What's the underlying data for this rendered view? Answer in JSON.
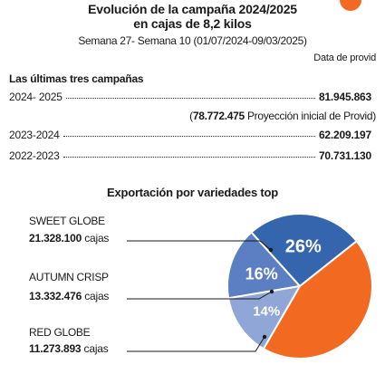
{
  "header": {
    "title_line1": "Evolución de la campaña 2024/2025",
    "title_line2": "en cajas de 8,2 kilos",
    "subtitle": "Semana 27- Semana 10 (01/07/2024-09/03/2025)",
    "source": "Data de provid"
  },
  "campaigns": {
    "section_title": "Las últimas tres campañas",
    "rows": [
      {
        "label": "2024- 2025",
        "value": "81.945.863"
      },
      {
        "label": "2023-2024",
        "value": "62.209.197"
      },
      {
        "label": "2022-2023",
        "value": "70.731.130"
      }
    ],
    "note_value": "78.772.475",
    "note_text": "Proyección inicial de Provid"
  },
  "export": {
    "title": "Exportación por variedades top",
    "unit": "cajas"
  },
  "colors": {
    "sweet_globe": "#3565ad",
    "autumn_crisp": "#5b7fc2",
    "red_globe": "#8fa6d6",
    "other": "#f26a21"
  },
  "chart_data": {
    "type": "pie",
    "title": "Exportación por variedades top",
    "slices": [
      {
        "name": "SWEET GLOBE",
        "value": 21328100,
        "value_label": "21.328.100",
        "percent": 26,
        "percent_label": "26%"
      },
      {
        "name": "AUTUMN CRISP",
        "value": 13332476,
        "value_label": "13.332.476",
        "percent": 16,
        "percent_label": "16%"
      },
      {
        "name": "RED GLOBE",
        "value": 11273893,
        "value_label": "11.273.893",
        "percent": 14,
        "percent_label": "14%"
      },
      {
        "name": "",
        "percent": 44
      }
    ]
  }
}
